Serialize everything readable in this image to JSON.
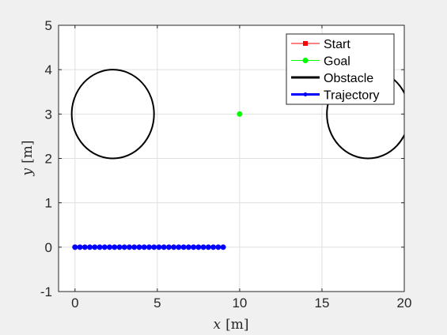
{
  "chart_data": {
    "type": "scatter",
    "xlabel": {
      "var": "x",
      "unit": "[m]"
    },
    "ylabel": {
      "var": "y",
      "unit": "[m]"
    },
    "xlim": [
      -1,
      20
    ],
    "ylim": [
      -1,
      5
    ],
    "xticks": [
      0,
      5,
      10,
      15,
      20
    ],
    "yticks": [
      -1,
      0,
      1,
      2,
      3,
      4,
      5
    ],
    "grid": true,
    "legend_position": "top-right",
    "series": [
      {
        "name": "Start",
        "color": "#ff0000",
        "style": "line-marker",
        "points": [
          [
            0,
            0
          ]
        ]
      },
      {
        "name": "Goal",
        "color": "#00ff00",
        "style": "line-marker",
        "points": [
          [
            10,
            3
          ]
        ]
      },
      {
        "name": "Obstacle",
        "color": "#000000",
        "style": "ellipse",
        "ellipses": [
          {
            "cx": 2.3,
            "cy": 3,
            "rx": 2.5,
            "ry": 1
          },
          {
            "cx": 17.8,
            "cy": 3,
            "rx": 2.5,
            "ry": 1
          }
        ]
      },
      {
        "name": "Trajectory",
        "color": "#0000ff",
        "style": "line-marker",
        "points": [
          [
            0,
            0
          ],
          [
            0.3,
            0
          ],
          [
            0.6,
            0
          ],
          [
            0.9,
            0
          ],
          [
            1.2,
            0
          ],
          [
            1.5,
            0
          ],
          [
            1.8,
            0
          ],
          [
            2.1,
            0
          ],
          [
            2.4,
            0
          ],
          [
            2.7,
            0
          ],
          [
            3.0,
            0
          ],
          [
            3.3,
            0
          ],
          [
            3.6,
            0
          ],
          [
            3.9,
            0
          ],
          [
            4.2,
            0
          ],
          [
            4.5,
            0
          ],
          [
            4.8,
            0
          ],
          [
            5.1,
            0
          ],
          [
            5.4,
            0
          ],
          [
            5.7,
            0
          ],
          [
            6.0,
            0
          ],
          [
            6.3,
            0
          ],
          [
            6.6,
            0
          ],
          [
            6.9,
            0
          ],
          [
            7.2,
            0
          ],
          [
            7.5,
            0
          ],
          [
            7.8,
            0
          ],
          [
            8.1,
            0
          ],
          [
            8.4,
            0
          ],
          [
            8.7,
            0
          ],
          [
            9.0,
            0
          ]
        ]
      }
    ]
  }
}
